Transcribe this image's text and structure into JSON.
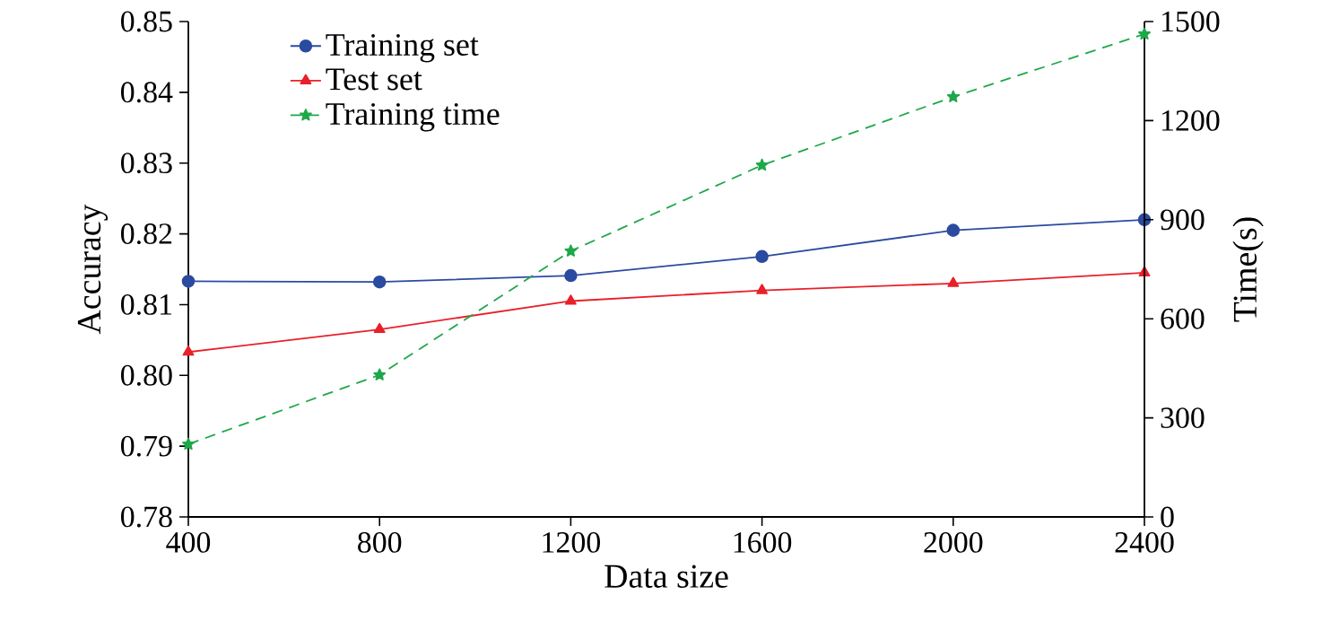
{
  "chart_data": {
    "type": "line",
    "xlabel": "Data size",
    "ylabel": "Accuracy",
    "y2label": "Time(s)",
    "x": [
      400,
      800,
      1200,
      1600,
      2000,
      2400
    ],
    "xlim": [
      400,
      2400
    ],
    "xticks": [
      400,
      800,
      1200,
      1600,
      2000,
      2400
    ],
    "ylim": [
      0.78,
      0.85
    ],
    "yticks": [
      0.78,
      0.79,
      {
        "value": 0.8,
        "label": "0.80"
      },
      0.81,
      0.82,
      0.83,
      0.84,
      0.85
    ],
    "y2lim": [
      0,
      1500
    ],
    "y2ticks": [
      0,
      300,
      600,
      900,
      1200,
      1500
    ],
    "legend": "top left",
    "grid": false,
    "series": [
      {
        "name": "Training set",
        "color": "#2b4ba0",
        "marker": "circle",
        "line_style": "solid",
        "values": [
          0.8133,
          0.8132,
          0.8141,
          0.8168,
          0.8205,
          0.822
        ]
      },
      {
        "name": "Test set",
        "color": "#e8202a",
        "marker": "triangle",
        "line_style": "solid",
        "values": [
          0.8033,
          0.8065,
          0.8105,
          0.812,
          0.813,
          0.8145
        ]
      },
      {
        "name": "Training time",
        "color": "#1ea84a",
        "marker": "star",
        "line_style": "dashed",
        "axis": "y2",
        "values": [
          220,
          430,
          805,
          1065,
          1272,
          1462
        ]
      }
    ]
  }
}
